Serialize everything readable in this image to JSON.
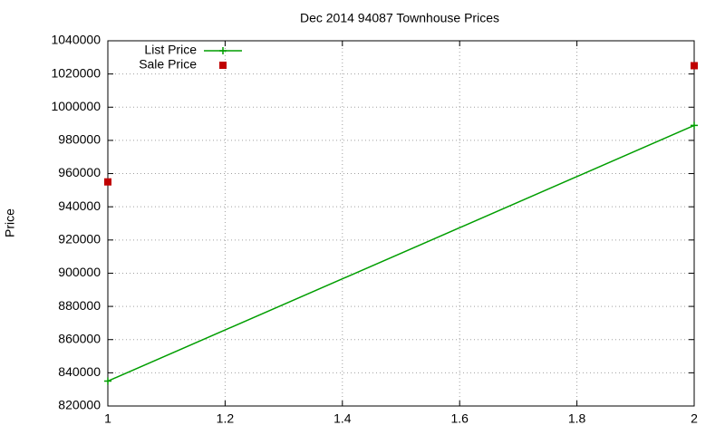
{
  "chart_data": {
    "type": "line",
    "title": "Dec 2014 94087 Townhouse Prices",
    "y_label": "Price",
    "x": [
      1,
      2
    ],
    "series": [
      {
        "name": "List Price",
        "color": "#009e00",
        "mode": "linespoints",
        "values": [
          835000,
          989000
        ]
      },
      {
        "name": "Sale Price",
        "color": "#c00000",
        "mode": "points",
        "values": [
          955000,
          1025000
        ]
      }
    ],
    "xlim": [
      1,
      2
    ],
    "xticks": [
      1,
      1.2,
      1.4,
      1.6,
      1.8,
      2
    ],
    "ylim": [
      820000,
      1040000
    ],
    "yticks": [
      820000,
      840000,
      860000,
      880000,
      900000,
      920000,
      940000,
      960000,
      980000,
      1000000,
      1020000,
      1040000
    ],
    "grid": true,
    "legend": "top-left"
  }
}
